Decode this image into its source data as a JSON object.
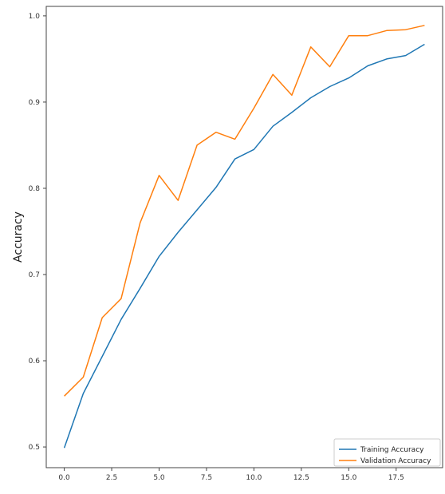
{
  "chart_data": {
    "type": "line",
    "title": "",
    "xlabel": "",
    "ylabel": "Accuracy",
    "x": [
      0,
      1,
      2,
      3,
      4,
      5,
      6,
      7,
      8,
      9,
      10,
      11,
      12,
      13,
      14,
      15,
      16,
      17,
      18,
      19
    ],
    "xticks": [
      0.0,
      2.5,
      5.0,
      7.5,
      10.0,
      12.5,
      15.0,
      17.5
    ],
    "xtick_labels": [
      "0.0",
      "2.5",
      "5.0",
      "7.5",
      "10.0",
      "12.5",
      "15.0",
      "17.5"
    ],
    "xlim": [
      -0.95,
      19.95
    ],
    "yticks": [
      0.5,
      0.6,
      0.7,
      0.8,
      0.9,
      1.0
    ],
    "ytick_labels": [
      "0.5",
      "0.6",
      "0.7",
      "0.8",
      "0.9",
      "1.0"
    ],
    "ylim": [
      0.476,
      1.011
    ],
    "grid": false,
    "legend_position": "bottom-right",
    "series": [
      {
        "name": "Training Accuracy",
        "color": "#1f77b4",
        "values": [
          0.499,
          0.562,
          0.605,
          0.648,
          0.684,
          0.721,
          0.749,
          0.775,
          0.801,
          0.834,
          0.845,
          0.872,
          0.888,
          0.905,
          0.918,
          0.928,
          0.942,
          0.95,
          0.954,
          0.967
        ]
      },
      {
        "name": "Validation Accuracy",
        "color": "#ff7f0e",
        "values": [
          0.559,
          0.581,
          0.65,
          0.672,
          0.76,
          0.815,
          0.786,
          0.85,
          0.865,
          0.857,
          0.893,
          0.932,
          0.908,
          0.964,
          0.941,
          0.977,
          0.977,
          0.983,
          0.984,
          0.989
        ]
      }
    ]
  }
}
